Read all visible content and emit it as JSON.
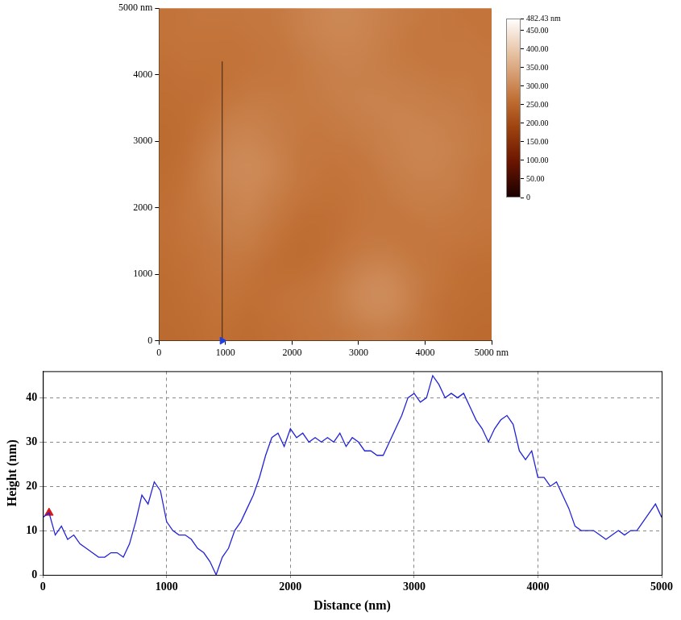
{
  "chart_data": [
    {
      "type": "heatmap",
      "xlim": [
        0,
        5000
      ],
      "ylim": [
        0,
        5000
      ],
      "xticks": [
        0,
        1000,
        2000,
        3000,
        4000,
        {
          "value": 5000,
          "label": "5000 nm"
        }
      ],
      "yticks": [
        0,
        1000,
        2000,
        3000,
        4000,
        {
          "value": 5000,
          "label": "5000 nm"
        }
      ],
      "cells": [
        [
          255,
          258,
          262,
          265,
          262,
          260,
          263,
          266,
          270,
          272,
          275,
          280,
          285,
          288,
          282,
          275,
          268,
          262,
          258,
          256
        ],
        [
          257,
          260,
          264,
          268,
          265,
          262,
          265,
          268,
          272,
          275,
          280,
          290,
          298,
          300,
          292,
          280,
          270,
          264,
          260,
          258
        ],
        [
          258,
          262,
          266,
          270,
          268,
          265,
          266,
          270,
          272,
          274,
          282,
          295,
          305,
          308,
          298,
          284,
          272,
          266,
          262,
          260
        ],
        [
          260,
          264,
          268,
          272,
          272,
          268,
          265,
          266,
          268,
          272,
          280,
          292,
          302,
          305,
          296,
          284,
          274,
          268,
          264,
          262
        ],
        [
          262,
          266,
          270,
          275,
          276,
          272,
          266,
          262,
          262,
          266,
          274,
          284,
          292,
          294,
          288,
          280,
          274,
          270,
          266,
          264
        ],
        [
          264,
          268,
          272,
          278,
          282,
          280,
          272,
          264,
          260,
          262,
          268,
          276,
          282,
          284,
          280,
          276,
          274,
          272,
          270,
          268
        ],
        [
          266,
          270,
          275,
          282,
          288,
          286,
          278,
          268,
          262,
          262,
          266,
          272,
          276,
          278,
          278,
          276,
          276,
          276,
          274,
          272
        ],
        [
          266,
          272,
          278,
          286,
          292,
          292,
          284,
          274,
          266,
          264,
          266,
          270,
          274,
          276,
          278,
          280,
          282,
          280,
          278,
          274
        ],
        [
          264,
          270,
          280,
          290,
          296,
          298,
          290,
          280,
          272,
          268,
          268,
          270,
          274,
          278,
          282,
          286,
          286,
          284,
          280,
          276
        ],
        [
          262,
          268,
          282,
          292,
          300,
          302,
          296,
          286,
          276,
          272,
          270,
          272,
          276,
          280,
          286,
          290,
          290,
          288,
          282,
          276
        ],
        [
          260,
          266,
          280,
          294,
          302,
          304,
          298,
          288,
          278,
          274,
          272,
          274,
          278,
          284,
          290,
          294,
          294,
          290,
          284,
          278
        ],
        [
          258,
          264,
          276,
          290,
          298,
          300,
          294,
          286,
          278,
          276,
          276,
          278,
          282,
          288,
          292,
          296,
          296,
          292,
          286,
          280
        ],
        [
          258,
          262,
          272,
          284,
          292,
          294,
          290,
          284,
          280,
          278,
          280,
          282,
          286,
          290,
          294,
          296,
          294,
          290,
          286,
          280
        ],
        [
          260,
          262,
          268,
          278,
          286,
          288,
          286,
          282,
          280,
          280,
          282,
          286,
          290,
          292,
          294,
          292,
          290,
          288,
          284,
          280
        ],
        [
          262,
          264,
          266,
          272,
          278,
          282,
          282,
          280,
          280,
          282,
          286,
          290,
          292,
          292,
          290,
          288,
          286,
          284,
          282,
          278
        ],
        [
          264,
          266,
          266,
          268,
          272,
          276,
          278,
          278,
          280,
          284,
          288,
          290,
          290,
          288,
          286,
          284,
          282,
          280,
          280,
          276
        ],
        [
          266,
          268,
          268,
          268,
          270,
          272,
          274,
          276,
          280,
          286,
          290,
          292,
          290,
          286,
          282,
          280,
          278,
          278,
          278,
          276
        ],
        [
          268,
          270,
          270,
          270,
          270,
          272,
          274,
          278,
          284,
          290,
          294,
          294,
          292,
          286,
          280,
          278,
          276,
          276,
          276,
          274
        ],
        [
          270,
          272,
          272,
          272,
          272,
          274,
          276,
          280,
          288,
          294,
          298,
          298,
          294,
          288,
          282,
          278,
          276,
          274,
          274,
          272
        ],
        [
          270,
          272,
          274,
          274,
          274,
          276,
          278,
          282,
          290,
          296,
          300,
          300,
          296,
          290,
          284,
          280,
          276,
          274,
          272,
          272
        ]
      ],
      "colorbar": {
        "range": [
          0,
          482.43
        ],
        "ticks": [
          0,
          {
            "value": 50,
            "label": "50.00"
          },
          {
            "value": 100,
            "label": "100.00"
          },
          {
            "value": 150,
            "label": "150.00"
          },
          {
            "value": 200,
            "label": "200.00"
          },
          {
            "value": 250,
            "label": "250.00"
          },
          {
            "value": 300,
            "label": "300.00"
          },
          {
            "value": 350,
            "label": "350.00"
          },
          {
            "value": 400,
            "label": "400.00"
          },
          {
            "value": 450,
            "label": "450.00"
          },
          {
            "value": 482.43,
            "label": "482.43 nm"
          }
        ]
      },
      "profile": {
        "x": [
          950,
          950
        ],
        "y": [
          0,
          4200
        ],
        "color": "#3b2414"
      }
    },
    {
      "type": "line",
      "xlabel": "Distance (nm)",
      "ylabel": "Height (nm)",
      "x": [
        0,
        50,
        100,
        150,
        200,
        250,
        300,
        350,
        400,
        450,
        500,
        550,
        600,
        650,
        700,
        750,
        800,
        850,
        900,
        950,
        1000,
        1050,
        1100,
        1150,
        1200,
        1250,
        1300,
        1350,
        1400,
        1450,
        1500,
        1550,
        1600,
        1650,
        1700,
        1750,
        1800,
        1850,
        1900,
        1950,
        2000,
        2050,
        2100,
        2150,
        2200,
        2250,
        2300,
        2350,
        2400,
        2450,
        2500,
        2550,
        2600,
        2650,
        2700,
        2750,
        2800,
        2850,
        2900,
        2950,
        3000,
        3050,
        3100,
        3150,
        3200,
        3250,
        3300,
        3350,
        3400,
        3450,
        3500,
        3550,
        3600,
        3650,
        3700,
        3750,
        3800,
        3850,
        3900,
        3950,
        4000,
        4050,
        4100,
        4150,
        4200,
        4250,
        4300,
        4350,
        4400,
        4450,
        4500,
        4550,
        4600,
        4650,
        4700,
        4750,
        4800,
        4850,
        4900,
        4950,
        5000
      ],
      "values": [
        13,
        14,
        9,
        11,
        8,
        9,
        7,
        6,
        5,
        4,
        4,
        5,
        5,
        4,
        7,
        12,
        18,
        16,
        21,
        19,
        12,
        10,
        9,
        9,
        8,
        6,
        5,
        3,
        0,
        4,
        6,
        10,
        12,
        15,
        18,
        22,
        27,
        31,
        32,
        29,
        33,
        31,
        32,
        30,
        31,
        30,
        31,
        30,
        32,
        29,
        31,
        30,
        28,
        28,
        27,
        27,
        30,
        33,
        36,
        40,
        41,
        39,
        40,
        45,
        43,
        40,
        41,
        40,
        41,
        38,
        35,
        33,
        30,
        33,
        35,
        36,
        34,
        28,
        26,
        28,
        22,
        22,
        20,
        21,
        18,
        15,
        11,
        10,
        10,
        10,
        9,
        8,
        9,
        10,
        9,
        10,
        10,
        12,
        14,
        16,
        13
      ],
      "color": "#2323d8",
      "xlim": [
        0,
        5000
      ],
      "ylim": [
        0,
        46
      ],
      "xticks": [
        0,
        1000,
        2000,
        3000,
        4000,
        5000
      ],
      "yticks": [
        0,
        10,
        20,
        30,
        40
      ],
      "grid": true,
      "markers": [
        {
          "x": 50,
          "y": 14,
          "color": "#d41a1a",
          "marker": "triangle"
        }
      ]
    }
  ]
}
